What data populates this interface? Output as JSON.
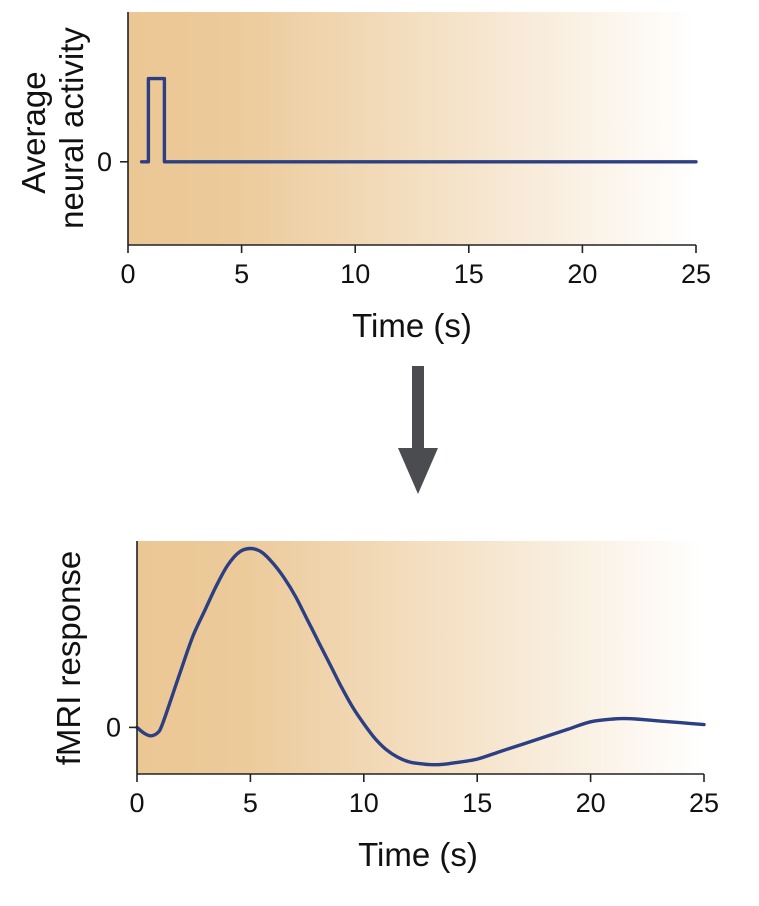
{
  "colors": {
    "background_warm": "#ebc794",
    "background_light": "#ffffff",
    "trace": "#2c3f82",
    "arrow": "#4a4c50",
    "axis": "#222222"
  },
  "chart_data": [
    {
      "type": "line",
      "title": "",
      "xlabel": "Time (s)",
      "ylabel_lines": [
        "Average",
        "neural activity"
      ],
      "xlim": [
        0,
        25
      ],
      "ylim": [
        -1,
        1.8
      ],
      "xticks": [
        0,
        5,
        10,
        15,
        20,
        25
      ],
      "ytick_labels": [
        {
          "value": 0,
          "label": "0"
        }
      ],
      "grid": false,
      "legend": "none",
      "series": [
        {
          "x": [
            0.6,
            0.9,
            0.9,
            1.6,
            1.6,
            25
          ],
          "y": [
            0,
            0,
            1,
            1,
            0,
            0
          ]
        }
      ]
    },
    {
      "type": "line",
      "title": "",
      "xlabel": "Time (s)",
      "ylabel_lines": [
        "fMRI response"
      ],
      "xlim": [
        0,
        25
      ],
      "ylim": [
        -0.25,
        1.0
      ],
      "xticks": [
        0,
        5,
        10,
        15,
        20,
        25
      ],
      "ytick_labels": [
        {
          "value": 0,
          "label": "0"
        }
      ],
      "grid": false,
      "legend": "none",
      "series": [
        {
          "x": [
            0,
            0.3,
            0.6,
            0.9,
            1.1,
            1.5,
            2,
            2.5,
            3,
            3.5,
            4,
            4.5,
            5,
            5.5,
            6,
            6.5,
            7,
            7.5,
            8,
            8.5,
            9,
            9.5,
            10,
            10.5,
            11,
            11.5,
            12,
            12.5,
            13,
            13.5,
            14,
            15,
            16,
            17,
            18,
            19,
            20,
            21,
            21.5,
            22,
            23,
            24,
            25
          ],
          "y": [
            0,
            -0.03,
            -0.045,
            -0.03,
            0.01,
            0.15,
            0.33,
            0.5,
            0.63,
            0.76,
            0.87,
            0.94,
            0.96,
            0.94,
            0.88,
            0.8,
            0.7,
            0.58,
            0.46,
            0.34,
            0.22,
            0.11,
            0.02,
            -0.06,
            -0.12,
            -0.16,
            -0.185,
            -0.195,
            -0.2,
            -0.198,
            -0.19,
            -0.17,
            -0.13,
            -0.09,
            -0.05,
            -0.01,
            0.03,
            0.045,
            0.047,
            0.045,
            0.035,
            0.025,
            0.015
          ]
        }
      ]
    }
  ]
}
